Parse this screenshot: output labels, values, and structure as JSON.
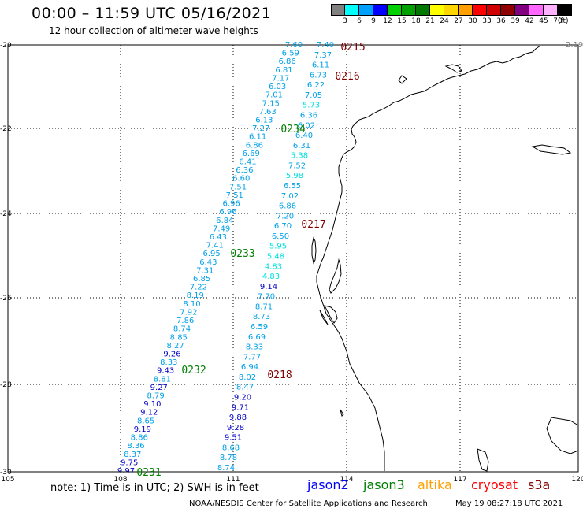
{
  "header": {
    "title": "00:00 – 11:59 UTC 05/16/2021",
    "subtitle": "12 hour collection of altimeter wave heights"
  },
  "colorbar": {
    "unit": "(ft)",
    "bins": [
      {
        "label": "3",
        "color": "#808080"
      },
      {
        "label": "6",
        "color": "#00ffff"
      },
      {
        "label": "9",
        "color": "#00a0ff"
      },
      {
        "label": "12",
        "color": "#0000ff"
      },
      {
        "label": "15",
        "color": "#00d000"
      },
      {
        "label": "18",
        "color": "#00a000"
      },
      {
        "label": "21",
        "color": "#007800"
      },
      {
        "label": "24",
        "color": "#ffff00"
      },
      {
        "label": "27",
        "color": "#ffd700"
      },
      {
        "label": "30",
        "color": "#ffa000"
      },
      {
        "label": "33",
        "color": "#ff0000"
      },
      {
        "label": "36",
        "color": "#d00000"
      },
      {
        "label": "39",
        "color": "#900000"
      },
      {
        "label": "42",
        "color": "#800080"
      },
      {
        "label": "45",
        "color": "#ff66ff"
      },
      {
        "label": "70",
        "color": "#ffb0ff"
      },
      {
        "label": "",
        "color": "#000000"
      }
    ]
  },
  "map": {
    "lat_labels": [
      "-20",
      "-22",
      "-24",
      "-26",
      "-28",
      "-30"
    ],
    "lon_labels": [
      "105",
      "108",
      "111",
      "114",
      "117",
      "120"
    ],
    "corner_value": "2.19"
  },
  "passes": [
    {
      "id": "0215",
      "color": "#800000"
    },
    {
      "id": "0216",
      "color": "#800000"
    },
    {
      "id": "0217",
      "color": "#800000"
    },
    {
      "id": "0218",
      "color": "#800000"
    },
    {
      "id": "0231",
      "color": "#008000"
    },
    {
      "id": "0232",
      "color": "#008000"
    },
    {
      "id": "0233",
      "color": "#008000"
    },
    {
      "id": "0234",
      "color": "#008000"
    }
  ],
  "tracks": {
    "track_0234": {
      "values": [
        "7.60",
        "6.59",
        "6.86",
        "6.81",
        "7.17",
        "6.03",
        "7.01",
        "7.15",
        "7.63",
        "6.13",
        "7.27",
        "6.11",
        "6.86",
        "6.69",
        "6.41",
        "6.36",
        "6.60",
        "7.51",
        "7.51",
        "6.96",
        "6.96",
        "6.84",
        "7.49",
        "6.43",
        "7.41",
        "6.95",
        "6.43",
        "7.31",
        "6.85",
        "7.22",
        "8.19",
        "8.10",
        "7.92",
        "7.86",
        "8.74",
        "8.85",
        "8.27",
        "9.26",
        "8.33",
        "9.43",
        "8.81",
        "9.27",
        "8.79",
        "9.10",
        "9.12",
        "8.65",
        "9.19",
        "8.86",
        "8.36",
        "8.37",
        "9.75",
        "9.97"
      ]
    },
    "track_0215": {
      "values": [
        "7.40",
        "7.37",
        "6.11",
        "6.73",
        "6.22",
        "7.05",
        "5.73",
        "6.36",
        "6.02",
        "6.40",
        "6.31",
        "5.38",
        "7.52",
        "5.98",
        "6.55",
        "7.02",
        "6.86",
        "7.20",
        "6.70",
        "6.50",
        "5.95",
        "5.48",
        "4.83",
        "4.83",
        "9.14",
        "7.70",
        "8.71",
        "8.73",
        "6.59",
        "6.69",
        "8.33",
        "7.77",
        "6.94",
        "8.02",
        "8.47",
        "9.20",
        "9.71",
        "9.88",
        "9.28",
        "9.51",
        "8.68",
        "8.78",
        "8.74"
      ]
    }
  },
  "notes": {
    "note": "note: 1) Time is in UTC; 2) SWH is in feet",
    "footer": "NOAA/NESDIS Center for Satellite Applications and Research",
    "stamp": "May 19 08:27:18 UTC 2021"
  },
  "legend": [
    {
      "label": "jason2",
      "color": "#0000ff"
    },
    {
      "label": "jason3",
      "color": "#008000"
    },
    {
      "label": "altika",
      "color": "#ffa000"
    },
    {
      "label": "cryosat",
      "color": "#ff0000"
    },
    {
      "label": "s3a",
      "color": "#800000"
    }
  ]
}
